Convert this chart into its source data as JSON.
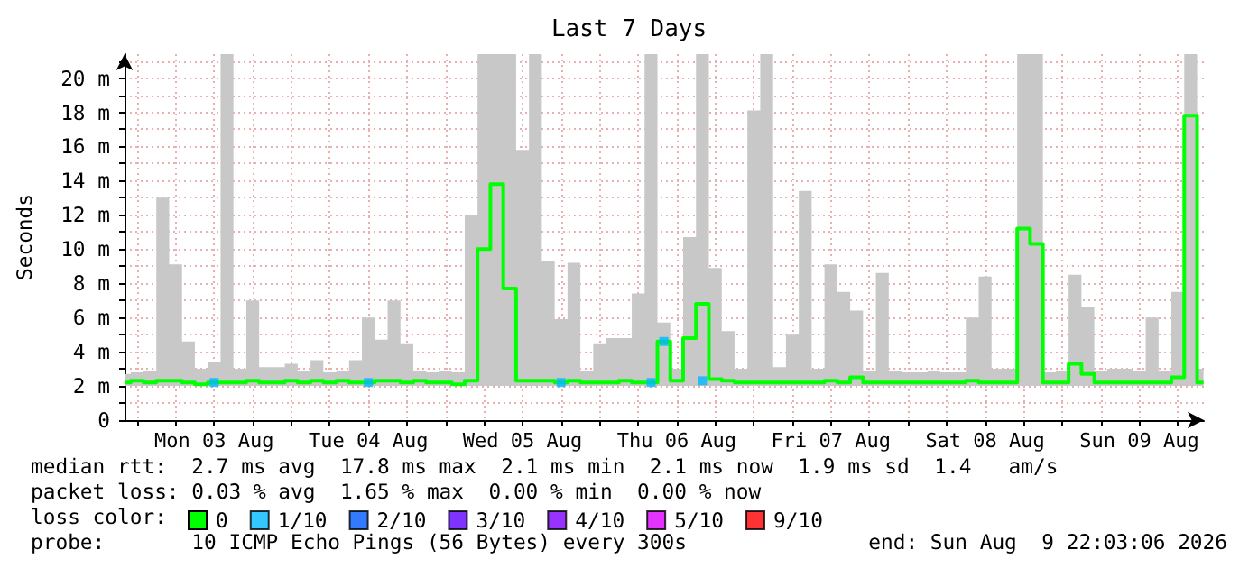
{
  "chart_data": {
    "type": "step",
    "title": "Last 7 Days",
    "ylabel": "Seconds",
    "legend_title": "loss color:",
    "legend": "bottom",
    "grid": true,
    "x": [
      "2026-08-02T22:03",
      "2026-08-03T00:00",
      "2026-08-03T02:00",
      "2026-08-03T04:00",
      "2026-08-03T06:00",
      "2026-08-03T08:00",
      "2026-08-03T10:00",
      "2026-08-03T12:00",
      "2026-08-03T14:00",
      "2026-08-03T16:00",
      "2026-08-03T18:00",
      "2026-08-03T20:00",
      "2026-08-03T22:00",
      "2026-08-04T00:00",
      "2026-08-04T02:00",
      "2026-08-04T04:00",
      "2026-08-04T06:00",
      "2026-08-04T08:00",
      "2026-08-04T10:00",
      "2026-08-04T12:00",
      "2026-08-04T14:00",
      "2026-08-04T16:00",
      "2026-08-04T18:00",
      "2026-08-04T20:00",
      "2026-08-04T22:00",
      "2026-08-05T00:00",
      "2026-08-05T02:00",
      "2026-08-05T04:00",
      "2026-08-05T06:00",
      "2026-08-05T08:00",
      "2026-08-05T10:00",
      "2026-08-05T12:00",
      "2026-08-05T14:00",
      "2026-08-05T16:00",
      "2026-08-05T18:00",
      "2026-08-05T20:00",
      "2026-08-05T22:00",
      "2026-08-06T00:00",
      "2026-08-06T02:00",
      "2026-08-06T04:00",
      "2026-08-06T06:00",
      "2026-08-06T08:00",
      "2026-08-06T10:00",
      "2026-08-06T12:00",
      "2026-08-06T14:00",
      "2026-08-06T16:00",
      "2026-08-06T18:00",
      "2026-08-06T20:00",
      "2026-08-06T22:00",
      "2026-08-07T00:00",
      "2026-08-07T02:00",
      "2026-08-07T04:00",
      "2026-08-07T06:00",
      "2026-08-07T08:00",
      "2026-08-07T10:00",
      "2026-08-07T12:00",
      "2026-08-07T14:00",
      "2026-08-07T16:00",
      "2026-08-07T18:00",
      "2026-08-07T20:00",
      "2026-08-07T22:00",
      "2026-08-08T00:00",
      "2026-08-08T02:00",
      "2026-08-08T04:00",
      "2026-08-08T06:00",
      "2026-08-08T08:00",
      "2026-08-08T10:00",
      "2026-08-08T12:00",
      "2026-08-08T14:00",
      "2026-08-08T16:00",
      "2026-08-08T18:00",
      "2026-08-08T20:00",
      "2026-08-08T22:00",
      "2026-08-09T00:00",
      "2026-08-09T02:00",
      "2026-08-09T04:00",
      "2026-08-09T06:00",
      "2026-08-09T08:00",
      "2026-08-09T10:00",
      "2026-08-09T12:00",
      "2026-08-09T14:00",
      "2026-08-09T16:00",
      "2026-08-09T18:00",
      "2026-08-09T20:00",
      "2026-08-09T22:00"
    ],
    "series": [
      {
        "name": "0",
        "color": "#00ff00",
        "marker": "none",
        "values": [
          2.2,
          2.3,
          2.2,
          2.3,
          2.3,
          2.2,
          2.1,
          2.2,
          2.2,
          2.2,
          2.3,
          2.2,
          2.2,
          2.3,
          2.2,
          2.3,
          2.2,
          2.3,
          2.2,
          2.2,
          2.3,
          2.3,
          2.2,
          2.3,
          2.2,
          2.2,
          2.1,
          2.3,
          10.0,
          13.8,
          7.7,
          2.3,
          2.3,
          2.3,
          2.2,
          2.3,
          2.2,
          2.2,
          2.2,
          2.3,
          2.2,
          2.2,
          4.6,
          2.3,
          4.8,
          6.8,
          2.4,
          2.3,
          2.2,
          2.2,
          2.2,
          2.2,
          2.2,
          2.2,
          2.2,
          2.3,
          2.2,
          2.5,
          2.2,
          2.2,
          2.2,
          2.2,
          2.2,
          2.2,
          2.2,
          2.2,
          2.3,
          2.2,
          2.2,
          2.2,
          11.2,
          10.3,
          2.2,
          2.2,
          3.3,
          2.7,
          2.2,
          2.2,
          2.2,
          2.2,
          2.2,
          2.2,
          2.5,
          17.8,
          2.2
        ],
        "lower": [
          2.0,
          2.0,
          2.0,
          2.0,
          2.0,
          2.0,
          2.0,
          2.0,
          2.0,
          2.0,
          2.0,
          2.0,
          2.0,
          2.0,
          2.0,
          2.0,
          2.0,
          2.0,
          2.0,
          2.0,
          2.0,
          2.0,
          2.0,
          2.0,
          2.0,
          2.0,
          2.0,
          2.0,
          2.0,
          2.0,
          2.0,
          2.0,
          2.0,
          2.0,
          2.0,
          2.0,
          2.0,
          2.0,
          2.0,
          2.0,
          2.0,
          2.0,
          2.0,
          2.0,
          2.0,
          2.0,
          2.0,
          2.0,
          2.0,
          2.0,
          2.0,
          2.0,
          2.0,
          2.0,
          2.0,
          2.0,
          2.0,
          2.0,
          2.0,
          2.0,
          2.0,
          2.0,
          2.0,
          2.0,
          2.0,
          2.0,
          2.0,
          2.0,
          2.0,
          2.0,
          2.0,
          2.0,
          2.0,
          2.0,
          2.0,
          2.0,
          2.0,
          2.0,
          2.0,
          2.0,
          2.0,
          2.0,
          2.0,
          2.0,
          2.0
        ],
        "upper": [
          2.7,
          2.8,
          2.9,
          13.0,
          9.1,
          4.6,
          3.0,
          3.4,
          21.4,
          3.0,
          7.0,
          3.1,
          3.1,
          3.3,
          2.9,
          3.5,
          2.8,
          2.9,
          3.5,
          6.0,
          4.7,
          7.0,
          4.5,
          2.9,
          2.8,
          2.9,
          2.8,
          12.0,
          21.4,
          21.4,
          21.4,
          15.8,
          21.4,
          9.3,
          5.9,
          9.2,
          2.9,
          4.5,
          4.8,
          4.8,
          7.4,
          21.4,
          5.7,
          3.0,
          10.7,
          21.4,
          8.9,
          5.2,
          3.0,
          18.1,
          21.4,
          3.1,
          5.0,
          13.4,
          3.0,
          9.1,
          7.5,
          6.4,
          2.9,
          8.6,
          2.9,
          2.8,
          2.8,
          2.9,
          2.8,
          2.8,
          6.0,
          8.4,
          3.0,
          3.0,
          21.4,
          21.4,
          2.8,
          2.9,
          8.5,
          6.6,
          2.9,
          3.0,
          3.0,
          2.9,
          6.0,
          2.9,
          7.5,
          21.4,
          3.0
        ]
      },
      {
        "name": "1/10",
        "color": "#00b8ff",
        "type": "scatter",
        "marker": "square",
        "x": [
          "2026-08-03T12:00",
          "2026-08-04T12:00",
          "2026-08-05T18:00",
          "2026-08-06T08:00",
          "2026-08-06T10:00",
          "2026-08-06T16:00"
        ],
        "values": [
          2.2,
          2.2,
          2.2,
          2.2,
          4.6,
          2.3
        ]
      },
      {
        "name": "2/10",
        "color": "#0059ff",
        "type": "scatter",
        "marker": "square",
        "values": [
          null,
          null,
          null,
          null,
          null,
          null,
          null,
          null,
          null,
          null,
          null,
          null,
          null,
          null,
          null,
          null,
          null,
          null,
          null,
          null,
          null,
          null,
          null,
          null,
          null,
          null,
          null,
          null,
          null,
          null,
          null,
          null,
          null,
          null,
          null,
          null,
          null,
          null,
          null,
          null,
          null,
          null,
          null,
          null,
          null,
          null,
          null,
          null,
          null,
          null,
          null,
          null,
          null,
          null,
          null,
          null,
          null,
          null,
          null,
          null,
          null,
          null,
          null,
          null,
          null,
          null,
          null,
          null,
          null,
          null,
          null,
          null,
          null,
          null,
          null,
          null,
          null,
          null,
          null,
          null,
          null,
          null,
          null,
          null,
          null
        ]
      },
      {
        "name": "3/10",
        "color": "#5e00ff",
        "type": "scatter",
        "marker": "square",
        "values": [
          null,
          null,
          null,
          null,
          null,
          null,
          null,
          null,
          null,
          null,
          null,
          null,
          null,
          null,
          null,
          null,
          null,
          null,
          null,
          null,
          null,
          null,
          null,
          null,
          null,
          null,
          null,
          null,
          null,
          null,
          null,
          null,
          null,
          null,
          null,
          null,
          null,
          null,
          null,
          null,
          null,
          null,
          null,
          null,
          null,
          null,
          null,
          null,
          null,
          null,
          null,
          null,
          null,
          null,
          null,
          null,
          null,
          null,
          null,
          null,
          null,
          null,
          null,
          null,
          null,
          null,
          null,
          null,
          null,
          null,
          null,
          null,
          null,
          null,
          null,
          null,
          null,
          null,
          null,
          null,
          null,
          null,
          null,
          null,
          null
        ]
      },
      {
        "name": "4/10",
        "color": "#7e00ff",
        "type": "scatter",
        "marker": "square",
        "values": [
          null,
          null,
          null,
          null,
          null,
          null,
          null,
          null,
          null,
          null,
          null,
          null,
          null,
          null,
          null,
          null,
          null,
          null,
          null,
          null,
          null,
          null,
          null,
          null,
          null,
          null,
          null,
          null,
          null,
          null,
          null,
          null,
          null,
          null,
          null,
          null,
          null,
          null,
          null,
          null,
          null,
          null,
          null,
          null,
          null,
          null,
          null,
          null,
          null,
          null,
          null,
          null,
          null,
          null,
          null,
          null,
          null,
          null,
          null,
          null,
          null,
          null,
          null,
          null,
          null,
          null,
          null,
          null,
          null,
          null,
          null,
          null,
          null,
          null,
          null,
          null,
          null,
          null,
          null,
          null,
          null,
          null,
          null,
          null,
          null
        ]
      },
      {
        "name": "5/10",
        "color": "#dd00ff",
        "type": "scatter",
        "marker": "square",
        "values": [
          null,
          null,
          null,
          null,
          null,
          null,
          null,
          null,
          null,
          null,
          null,
          null,
          null,
          null,
          null,
          null,
          null,
          null,
          null,
          null,
          null,
          null,
          null,
          null,
          null,
          null,
          null,
          null,
          null,
          null,
          null,
          null,
          null,
          null,
          null,
          null,
          null,
          null,
          null,
          null,
          null,
          null,
          null,
          null,
          null,
          null,
          null,
          null,
          null,
          null,
          null,
          null,
          null,
          null,
          null,
          null,
          null,
          null,
          null,
          null,
          null,
          null,
          null,
          null,
          null,
          null,
          null,
          null,
          null,
          null,
          null,
          null,
          null,
          null,
          null,
          null,
          null,
          null,
          null,
          null,
          null,
          null,
          null,
          null,
          null
        ]
      },
      {
        "name": "9/10",
        "color": "#ff0000",
        "type": "scatter",
        "marker": "square",
        "values": [
          null,
          null,
          null,
          null,
          null,
          null,
          null,
          null,
          null,
          null,
          null,
          null,
          null,
          null,
          null,
          null,
          null,
          null,
          null,
          null,
          null,
          null,
          null,
          null,
          null,
          null,
          null,
          null,
          null,
          null,
          null,
          null,
          null,
          null,
          null,
          null,
          null,
          null,
          null,
          null,
          null,
          null,
          null,
          null,
          null,
          null,
          null,
          null,
          null,
          null,
          null,
          null,
          null,
          null,
          null,
          null,
          null,
          null,
          null,
          null,
          null,
          null,
          null,
          null,
          null,
          null,
          null,
          null,
          null,
          null,
          null,
          null,
          null,
          null,
          null,
          null,
          null,
          null,
          null,
          null,
          null,
          null,
          null,
          null,
          null
        ]
      }
    ],
    "xlim": [
      "2026-08-02T22:03",
      "2026-08-09T22:03"
    ],
    "xticks": [
      {
        "value": "2026-08-03T00:00",
        "label": null
      },
      {
        "value": "2026-08-03T06:00",
        "label": null
      },
      {
        "value": "2026-08-03T12:00",
        "label": "Mon 03 Aug"
      },
      {
        "value": "2026-08-03T18:00",
        "label": null
      },
      {
        "value": "2026-08-04T00:00",
        "label": null
      },
      {
        "value": "2026-08-04T06:00",
        "label": null
      },
      {
        "value": "2026-08-04T12:00",
        "label": "Tue 04 Aug"
      },
      {
        "value": "2026-08-04T18:00",
        "label": null
      },
      {
        "value": "2026-08-05T00:00",
        "label": null
      },
      {
        "value": "2026-08-05T06:00",
        "label": null
      },
      {
        "value": "2026-08-05T12:00",
        "label": "Wed 05 Aug"
      },
      {
        "value": "2026-08-05T18:00",
        "label": null
      },
      {
        "value": "2026-08-06T00:00",
        "label": null
      },
      {
        "value": "2026-08-06T06:00",
        "label": null
      },
      {
        "value": "2026-08-06T12:00",
        "label": "Thu 06 Aug"
      },
      {
        "value": "2026-08-06T18:00",
        "label": null
      },
      {
        "value": "2026-08-07T00:00",
        "label": null
      },
      {
        "value": "2026-08-07T06:00",
        "label": null
      },
      {
        "value": "2026-08-07T12:00",
        "label": "Fri 07 Aug"
      },
      {
        "value": "2026-08-07T18:00",
        "label": null
      },
      {
        "value": "2026-08-08T00:00",
        "label": null
      },
      {
        "value": "2026-08-08T06:00",
        "label": null
      },
      {
        "value": "2026-08-08T12:00",
        "label": "Sat 08 Aug"
      },
      {
        "value": "2026-08-08T18:00",
        "label": null
      },
      {
        "value": "2026-08-09T00:00",
        "label": null
      },
      {
        "value": "2026-08-09T06:00",
        "label": null
      },
      {
        "value": "2026-08-09T12:00",
        "label": "Sun 09 Aug"
      },
      {
        "value": "2026-08-09T18:00",
        "label": null
      }
    ],
    "ylim": [
      0,
      21.4
    ],
    "yticks": [
      {
        "value": 0,
        "label": "0"
      },
      {
        "value": 1,
        "label": null
      },
      {
        "value": 2,
        "label": "2 m"
      },
      {
        "value": 3,
        "label": null
      },
      {
        "value": 4,
        "label": "4 m"
      },
      {
        "value": 5,
        "label": null
      },
      {
        "value": 6,
        "label": "6 m"
      },
      {
        "value": 7,
        "label": null
      },
      {
        "value": 8,
        "label": "8 m"
      },
      {
        "value": 9,
        "label": null
      },
      {
        "value": 10,
        "label": "10 m"
      },
      {
        "value": 11,
        "label": null
      },
      {
        "value": 12,
        "label": "12 m"
      },
      {
        "value": 13,
        "label": null
      },
      {
        "value": 14,
        "label": "14 m"
      },
      {
        "value": 15,
        "label": null
      },
      {
        "value": 16,
        "label": "16 m"
      },
      {
        "value": 17,
        "label": null
      },
      {
        "value": 18,
        "label": "18 m"
      },
      {
        "value": 19,
        "label": null
      },
      {
        "value": 20,
        "label": "20 m"
      },
      {
        "value": 21,
        "label": null
      }
    ],
    "annotations": [
      "median rtt:  2.7 ms avg  17.8 ms max  2.1 ms min  2.1 ms now  1.9 ms sd  1.4   am/s",
      "packet loss: 0.03 % avg  1.65 % max  0.00 % min  0.00 % now",
      "probe:       10 ICMP Echo Pings (56 Bytes) every 300s",
      "end: Sun Aug  9 22:03:06 2026"
    ]
  }
}
